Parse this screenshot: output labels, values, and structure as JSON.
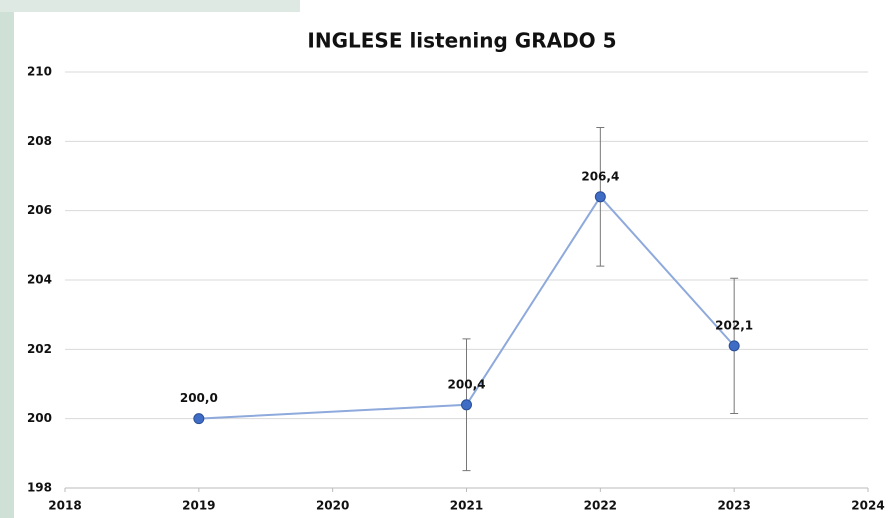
{
  "chart_data": {
    "type": "line",
    "title": "INGLESE listening GRADO 5",
    "x": [
      2019,
      2021,
      2022,
      2023
    ],
    "values": [
      200.0,
      200.4,
      206.4,
      202.1
    ],
    "value_labels": [
      "200,0",
      "200,4",
      "206,4",
      "202,1"
    ],
    "errors": [
      null,
      1.9,
      2.0,
      1.95
    ],
    "color": "#3f6cc4",
    "xlim": [
      2018,
      2024
    ],
    "xticks": [
      2018,
      2019,
      2020,
      2021,
      2022,
      2023,
      2024
    ],
    "ylim": [
      198,
      210
    ],
    "yticks": [
      198,
      200,
      202,
      204,
      206,
      208,
      210
    ],
    "grid": true
  }
}
